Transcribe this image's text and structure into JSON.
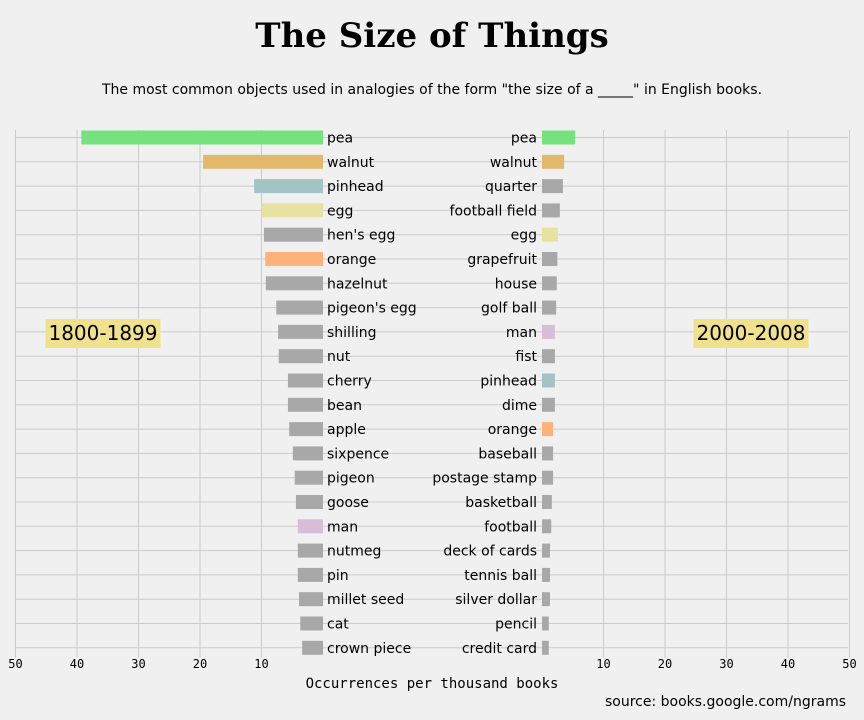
{
  "title": "The Size of Things",
  "subtitle": "The most common objects used in analogies of the form \"the size of a _____\" in English books.",
  "xlabel": "Occurrences per thousand books",
  "source": "source: books.google.com/ngrams",
  "colors": {
    "background": "#f0f0f0",
    "grid": "#cbcbcb",
    "default_bar": "#a8a8a8",
    "label_box": "#f0e28c",
    "pea": "#77e07f",
    "walnut": "#e2b86c",
    "pinhead": "#a3c4c4",
    "egg": "#e8e2a2",
    "orange": "#fdb27c",
    "man": "#d8bdd8"
  },
  "chart_data": [
    {
      "type": "bar",
      "orientation": "horizontal",
      "period_label": "1800-1899",
      "xlim": [
        50,
        0
      ],
      "xticks": [
        50,
        40,
        30,
        20,
        10
      ],
      "grid": true,
      "categories": [
        "pea",
        "walnut",
        "pinhead",
        "egg",
        "hen's egg",
        "orange",
        "hazelnut",
        "pigeon's egg",
        "shilling",
        "nut",
        "cherry",
        "bean",
        "apple",
        "sixpence",
        "pigeon",
        "goose",
        "man",
        "nutmeg",
        "pin",
        "millet seed",
        "cat",
        "crown piece"
      ],
      "values": [
        39.3,
        19.5,
        11.2,
        10.0,
        9.6,
        9.4,
        9.3,
        7.6,
        7.3,
        7.2,
        5.7,
        5.7,
        5.5,
        4.9,
        4.6,
        4.4,
        4.1,
        4.1,
        4.1,
        3.9,
        3.7,
        3.4
      ]
    },
    {
      "type": "bar",
      "orientation": "horizontal",
      "period_label": "2000-2008",
      "xlim": [
        0,
        50
      ],
      "xticks": [
        10,
        20,
        30,
        40,
        50
      ],
      "grid": true,
      "categories": [
        "pea",
        "walnut",
        "quarter",
        "football field",
        "egg",
        "grapefruit",
        "house",
        "golf ball",
        "man",
        "fist",
        "pinhead",
        "dime",
        "orange",
        "baseball",
        "postage stamp",
        "basketball",
        "football",
        "deck of cards",
        "tennis ball",
        "silver dollar",
        "pencil",
        "credit card"
      ],
      "values": [
        5.4,
        3.6,
        3.4,
        2.9,
        2.6,
        2.5,
        2.4,
        2.3,
        2.1,
        2.1,
        2.1,
        2.1,
        1.8,
        1.8,
        1.8,
        1.6,
        1.5,
        1.3,
        1.3,
        1.3,
        1.1,
        1.1
      ]
    }
  ]
}
